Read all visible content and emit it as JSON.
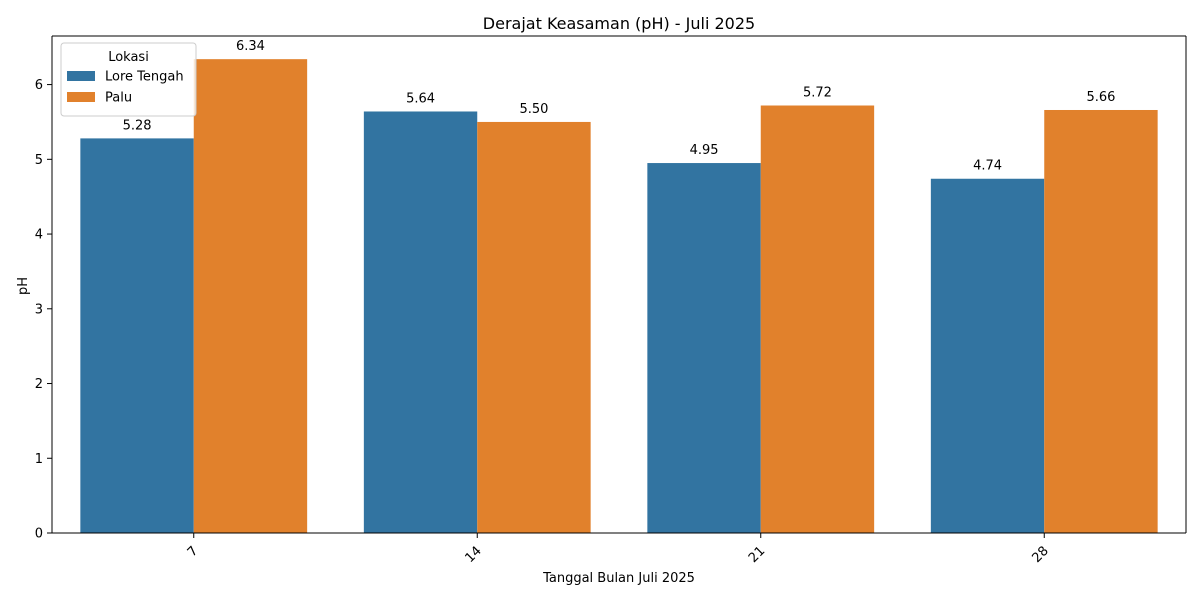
{
  "chart_data": {
    "type": "bar",
    "title": "Derajat Keasaman (pH) - Juli 2025",
    "xlabel": "Tanggal Bulan Juli 2025",
    "ylabel": "pH",
    "categories": [
      "7",
      "14",
      "21",
      "28"
    ],
    "series": [
      {
        "name": "Lore Tengah",
        "color": "#3274a1",
        "values": [
          5.28,
          5.64,
          4.95,
          4.74
        ],
        "labels": [
          "5.28",
          "5.64",
          "4.95",
          "4.74"
        ]
      },
      {
        "name": "Palu",
        "color": "#e1812c",
        "values": [
          6.34,
          5.5,
          5.72,
          5.66
        ],
        "labels": [
          "6.34",
          "5.50",
          "5.72",
          "5.66"
        ]
      }
    ],
    "ylim": [
      0,
      6.65
    ],
    "yticks": [
      0,
      1,
      2,
      3,
      4,
      5,
      6
    ],
    "x_tick_rotation": 45,
    "legend": {
      "title": "Lokasi",
      "placement": "upper-left"
    },
    "grid": false
  }
}
